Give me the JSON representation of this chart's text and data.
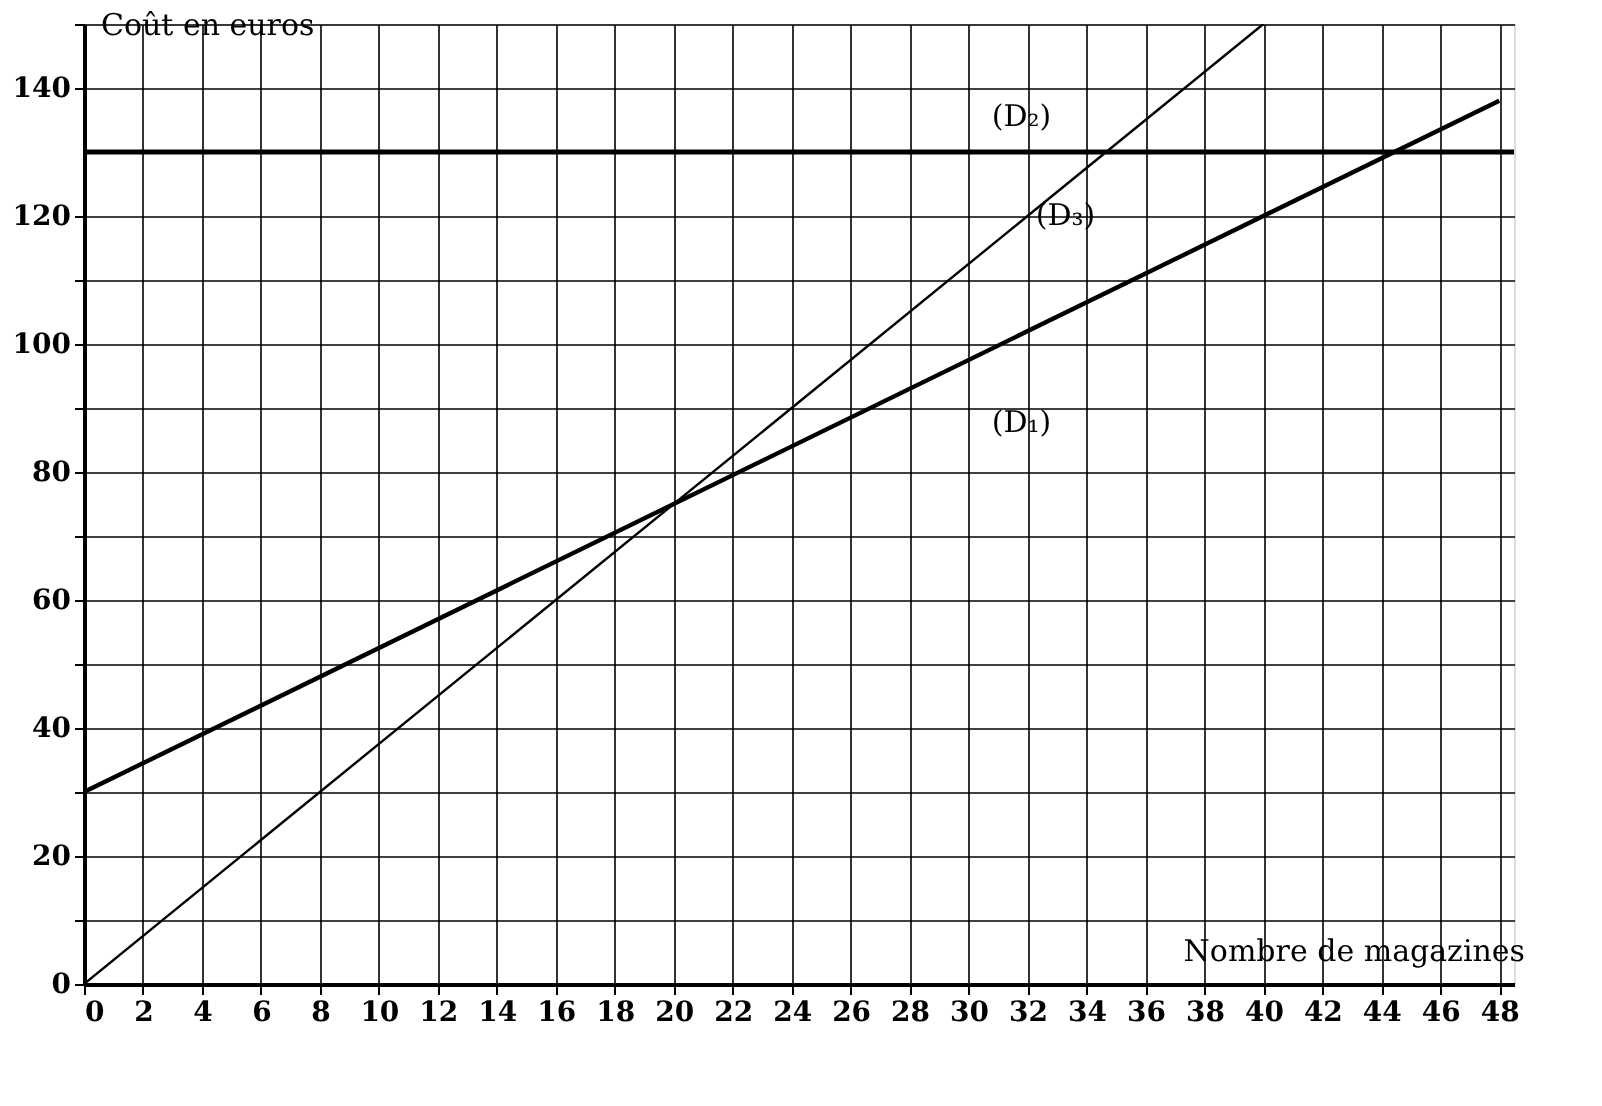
{
  "chart_data": {
    "type": "line",
    "xlabel": "Nombre de magazines",
    "ylabel": "Coût en euros",
    "series": [
      {
        "name": "(D₁)",
        "color": "#000000",
        "x": [
          0,
          48
        ],
        "values": [
          30,
          138
        ]
      },
      {
        "name": "(D₂)",
        "color": "#000000",
        "x": [
          0,
          48.5
        ],
        "values": [
          130,
          130
        ]
      },
      {
        "name": "(D₃)",
        "color": "#000000",
        "x": [
          0,
          40
        ],
        "values": [
          0,
          150
        ]
      }
    ],
    "xlim": [
      0,
      48.5
    ],
    "ylim": [
      0,
      150
    ],
    "xticks": [
      0,
      2,
      4,
      6,
      8,
      10,
      12,
      14,
      16,
      18,
      20,
      22,
      24,
      26,
      28,
      30,
      32,
      34,
      36,
      38,
      40,
      42,
      44,
      46,
      48
    ],
    "yticks": [
      0,
      {
        "value": 10,
        "label": null
      },
      20,
      {
        "value": 30,
        "label": null
      },
      40,
      {
        "value": 50,
        "label": null
      },
      60,
      {
        "value": 70,
        "label": null
      },
      80,
      {
        "value": 90,
        "label": null
      },
      100,
      {
        "value": 110,
        "label": null
      },
      120,
      140,
      {
        "value": 150,
        "label": null
      }
    ],
    "grid": true,
    "marker": "none",
    "line_style": "solid"
  }
}
